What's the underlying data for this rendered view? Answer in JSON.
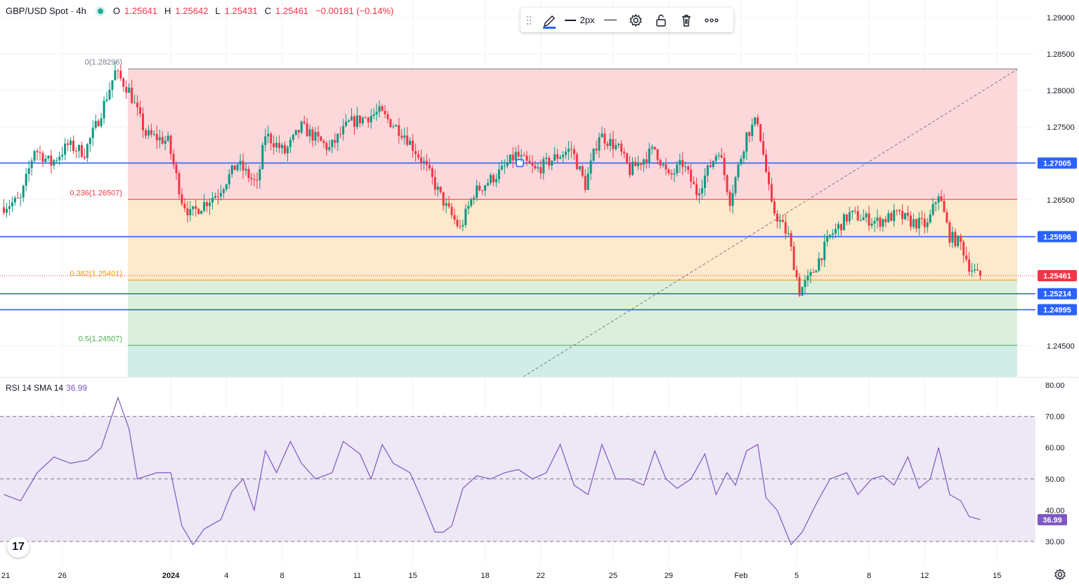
{
  "header": {
    "symbol": "GBP/USD Spot · 4h",
    "o_label": "O",
    "o_value": "1.25641",
    "h_label": "H",
    "h_value": "1.25642",
    "l_label": "L",
    "l_value": "1.25431",
    "c_label": "C",
    "c_value": "1.25461",
    "change": "−0.00181 (−0.14%)"
  },
  "toolbar": {
    "width_label": "2px",
    "icons": [
      "drag-handle-icon",
      "pencil-icon",
      "line-width-icon",
      "line-style-icon",
      "gear-icon",
      "unlock-icon",
      "trash-icon",
      "more-icon"
    ]
  },
  "rsi": {
    "label": "RSI 14 SMA 14",
    "value": "36.99"
  },
  "logo": {
    "text": "17"
  },
  "colors": {
    "up": "#089981",
    "down": "#f23645",
    "hline": "#2962ff",
    "fib_red": "#fcd8db",
    "fib_orange": "#fde9cb",
    "fib_green": "#dcefdc",
    "fib_teal": "#d0ede6",
    "rsi_line": "#7e57c2",
    "rsi_band": "#ede7f6"
  },
  "chart_data": [
    {
      "type": "candlestick",
      "title": "GBP/USD Spot · 4h",
      "ylim": [
        1.241,
        1.291
      ],
      "y_ticks": [
        "1.29000",
        "1.28500",
        "1.28000",
        "1.27500",
        "1.26500",
        "1.24500"
      ],
      "y_tick_values": [
        1.29,
        1.285,
        1.28,
        1.275,
        1.265,
        1.245
      ],
      "x_ticks": [
        "21",
        "26",
        "2024",
        "4",
        "8",
        "11",
        "15",
        "18",
        "22",
        "25",
        "29",
        "Feb",
        "5",
        "8",
        "12",
        "15"
      ],
      "x_tick_bars": [
        -2,
        21,
        60,
        80,
        100,
        127,
        147,
        173,
        193,
        219,
        239,
        265,
        285,
        311,
        331,
        357
      ],
      "bar_count": 352,
      "price_levels": [
        {
          "label": "1.27005",
          "value": 1.27005
        },
        {
          "label": "1.25996",
          "value": 1.25996
        },
        {
          "label": "1.25214",
          "value": 1.25214
        },
        {
          "label": "1.24995",
          "value": 1.24995
        }
      ],
      "current_price": {
        "label": "1.25461",
        "value": 1.25461
      },
      "fib_levels": [
        {
          "label": "0(1.28296)",
          "ratio": 0,
          "value": 1.28296
        },
        {
          "label": "0.236(1.26507)",
          "ratio": 0.236,
          "value": 1.26507
        },
        {
          "label": "0.382(1.25401)",
          "ratio": 0.382,
          "value": 1.25401
        },
        {
          "label": "0.5(1.24507)",
          "ratio": 0.5,
          "value": 1.24507
        }
      ],
      "waypoints": [
        [
          0,
          1.264
        ],
        [
          7,
          1.265
        ],
        [
          12,
          1.272
        ],
        [
          18,
          1.27
        ],
        [
          24,
          1.2725
        ],
        [
          30,
          1.2715
        ],
        [
          35,
          1.276
        ],
        [
          41,
          1.2825
        ],
        [
          46,
          1.28
        ],
        [
          52,
          1.274
        ],
        [
          60,
          1.273
        ],
        [
          65,
          1.265
        ],
        [
          68,
          1.263
        ],
        [
          78,
          1.266
        ],
        [
          85,
          1.27
        ],
        [
          92,
          1.267
        ],
        [
          95,
          1.274
        ],
        [
          102,
          1.2715
        ],
        [
          108,
          1.275
        ],
        [
          118,
          1.272
        ],
        [
          125,
          1.2755
        ],
        [
          136,
          1.277
        ],
        [
          145,
          1.274
        ],
        [
          152,
          1.27
        ],
        [
          160,
          1.264
        ],
        [
          165,
          1.261
        ],
        [
          170,
          1.266
        ],
        [
          180,
          1.269
        ],
        [
          185,
          1.2712
        ],
        [
          192,
          1.269
        ],
        [
          200,
          1.271
        ],
        [
          205,
          1.272
        ],
        [
          210,
          1.267
        ],
        [
          215,
          1.274
        ],
        [
          222,
          1.272
        ],
        [
          226,
          1.269
        ],
        [
          235,
          1.272
        ],
        [
          240,
          1.268
        ],
        [
          245,
          1.27
        ],
        [
          250,
          1.266
        ],
        [
          258,
          1.272
        ],
        [
          262,
          1.265
        ],
        [
          268,
          1.274
        ],
        [
          272,
          1.276
        ],
        [
          277,
          1.264
        ],
        [
          283,
          1.26
        ],
        [
          287,
          1.2525
        ],
        [
          291,
          1.2545
        ],
        [
          298,
          1.26
        ],
        [
          305,
          1.263
        ],
        [
          315,
          1.262
        ],
        [
          322,
          1.263
        ],
        [
          327,
          1.262
        ],
        [
          333,
          1.2615
        ],
        [
          337,
          1.266
        ],
        [
          341,
          1.26
        ],
        [
          345,
          1.259
        ],
        [
          348,
          1.256
        ],
        [
          351,
          1.25461
        ]
      ]
    },
    {
      "type": "line",
      "title": "RSI 14 SMA 14",
      "ylim": [
        25,
        82
      ],
      "y_ticks": [
        "80.00",
        "70.00",
        "60.00",
        "50.00",
        "40.00",
        "30.00"
      ],
      "y_tick_values": [
        80,
        70,
        60,
        50,
        40,
        30
      ],
      "band": [
        30,
        70
      ],
      "midline": 50,
      "last_value": 36.99,
      "points": [
        [
          0,
          45
        ],
        [
          6,
          43
        ],
        [
          12,
          52
        ],
        [
          18,
          57
        ],
        [
          24,
          55
        ],
        [
          30,
          56
        ],
        [
          35,
          60
        ],
        [
          41,
          76
        ],
        [
          45,
          66
        ],
        [
          48,
          50
        ],
        [
          55,
          52
        ],
        [
          60,
          52
        ],
        [
          64,
          35
        ],
        [
          68,
          29
        ],
        [
          72,
          34
        ],
        [
          78,
          37
        ],
        [
          82,
          46
        ],
        [
          86,
          50
        ],
        [
          90,
          40
        ],
        [
          94,
          59
        ],
        [
          98,
          52
        ],
        [
          103,
          62
        ],
        [
          107,
          55
        ],
        [
          112,
          50
        ],
        [
          118,
          52
        ],
        [
          122,
          62
        ],
        [
          128,
          58
        ],
        [
          132,
          50
        ],
        [
          136,
          61
        ],
        [
          140,
          55
        ],
        [
          146,
          52
        ],
        [
          150,
          44
        ],
        [
          155,
          33
        ],
        [
          158,
          33
        ],
        [
          161,
          35
        ],
        [
          165,
          47
        ],
        [
          170,
          51
        ],
        [
          175,
          50
        ],
        [
          180,
          52
        ],
        [
          185,
          53
        ],
        [
          190,
          50
        ],
        [
          195,
          52
        ],
        [
          200,
          61
        ],
        [
          205,
          48
        ],
        [
          210,
          45
        ],
        [
          215,
          61
        ],
        [
          220,
          50
        ],
        [
          225,
          50
        ],
        [
          230,
          48
        ],
        [
          234,
          59
        ],
        [
          238,
          50
        ],
        [
          242,
          47
        ],
        [
          247,
          50
        ],
        [
          252,
          58
        ],
        [
          256,
          45
        ],
        [
          260,
          52
        ],
        [
          263,
          48
        ],
        [
          267,
          59
        ],
        [
          271,
          61
        ],
        [
          274,
          44
        ],
        [
          278,
          40
        ],
        [
          283,
          29
        ],
        [
          287,
          33
        ],
        [
          292,
          42
        ],
        [
          297,
          50
        ],
        [
          303,
          52
        ],
        [
          307,
          45
        ],
        [
          312,
          50
        ],
        [
          316,
          51
        ],
        [
          320,
          48
        ],
        [
          325,
          57
        ],
        [
          329,
          47
        ],
        [
          333,
          50
        ],
        [
          336,
          60
        ],
        [
          340,
          45
        ],
        [
          344,
          43
        ],
        [
          347,
          38
        ],
        [
          351,
          36.99
        ]
      ]
    }
  ]
}
